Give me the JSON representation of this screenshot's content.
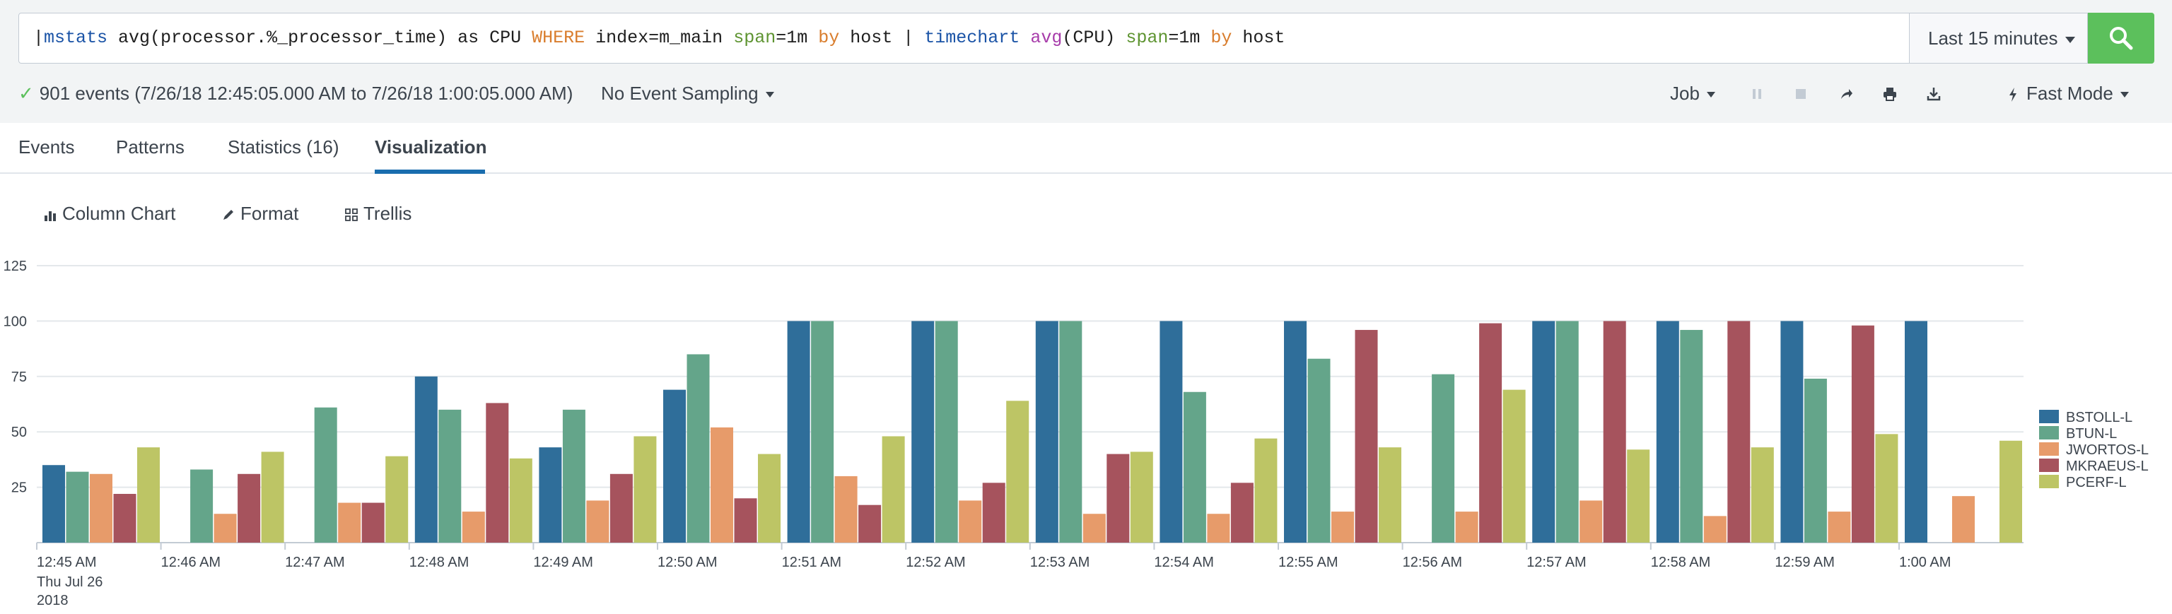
{
  "search": {
    "query_tokens": [
      {
        "text": "|",
        "cls": "tok-pipe"
      },
      {
        "text": "mstats",
        "cls": "tok-cmd"
      },
      {
        "text": " avg(processor.%_processor_time) as CPU ",
        "cls": ""
      },
      {
        "text": "WHERE",
        "cls": "tok-kw"
      },
      {
        "text": " index=m_main ",
        "cls": ""
      },
      {
        "text": "span",
        "cls": "tok-arg"
      },
      {
        "text": "=1m ",
        "cls": ""
      },
      {
        "text": "by",
        "cls": "tok-kw"
      },
      {
        "text": " host | ",
        "cls": ""
      },
      {
        "text": "timechart",
        "cls": "tok-cmd"
      },
      {
        "text": " ",
        "cls": ""
      },
      {
        "text": "avg",
        "cls": "tok-fn"
      },
      {
        "text": "(CPU) ",
        "cls": ""
      },
      {
        "text": "span",
        "cls": "tok-arg"
      },
      {
        "text": "=1m ",
        "cls": ""
      },
      {
        "text": "by",
        "cls": "tok-kw"
      },
      {
        "text": " host",
        "cls": ""
      }
    ],
    "time_range": "Last 15 minutes",
    "accent_color": "#5cc05c"
  },
  "status": {
    "check": "✓",
    "events_text": "901 events (7/26/18 12:45:05.000 AM to 7/26/18 1:00:05.000 AM)",
    "sampling": "No Event Sampling",
    "job": "Job",
    "mode": "Fast Mode",
    "tools": [
      "pause-icon",
      "stop-icon",
      "share-icon",
      "print-icon",
      "export-icon"
    ]
  },
  "tabs": [
    {
      "label": "Events"
    },
    {
      "label": "Patterns"
    },
    {
      "label": "Statistics (16)"
    },
    {
      "label": "Visualization",
      "active": true
    }
  ],
  "viz_toolbar": {
    "chart_type": "Column Chart",
    "format": "Format",
    "trellis": "Trellis"
  },
  "chart_data": {
    "type": "bar",
    "categories": [
      "12:45 AM",
      "12:46 AM",
      "12:47 AM",
      "12:48 AM",
      "12:49 AM",
      "12:50 AM",
      "12:51 AM",
      "12:52 AM",
      "12:53 AM",
      "12:54 AM",
      "12:55 AM",
      "12:56 AM",
      "12:57 AM",
      "12:58 AM",
      "12:59 AM",
      "1:00 AM"
    ],
    "first_label_extra": [
      "Thu Jul 26",
      "2018"
    ],
    "yticks": [
      25,
      50,
      75,
      100,
      125
    ],
    "ylim": [
      0,
      125
    ],
    "legend_position": "right",
    "series": [
      {
        "name": "BSTOLL-L",
        "color": "#2f6e9a",
        "values": [
          35,
          null,
          null,
          75,
          43,
          69,
          100,
          100,
          100,
          100,
          100,
          null,
          100,
          100,
          100,
          100
        ]
      },
      {
        "name": "BTUN-L",
        "color": "#64a58a",
        "values": [
          32,
          33,
          61,
          60,
          60,
          85,
          100,
          100,
          100,
          68,
          83,
          76,
          100,
          96,
          74,
          null
        ]
      },
      {
        "name": "JWORTOS-L",
        "color": "#e79b6a",
        "values": [
          31,
          13,
          18,
          14,
          19,
          52,
          30,
          19,
          13,
          13,
          14,
          14,
          19,
          12,
          14,
          21
        ]
      },
      {
        "name": "MKRAEUS-L",
        "color": "#a6535d",
        "values": [
          22,
          31,
          18,
          63,
          31,
          20,
          17,
          27,
          40,
          27,
          96,
          99,
          100,
          100,
          98,
          null
        ]
      },
      {
        "name": "PCERF-L",
        "color": "#bdc565",
        "values": [
          43,
          41,
          39,
          38,
          48,
          40,
          48,
          64,
          41,
          47,
          43,
          69,
          42,
          43,
          49,
          46
        ]
      }
    ]
  }
}
